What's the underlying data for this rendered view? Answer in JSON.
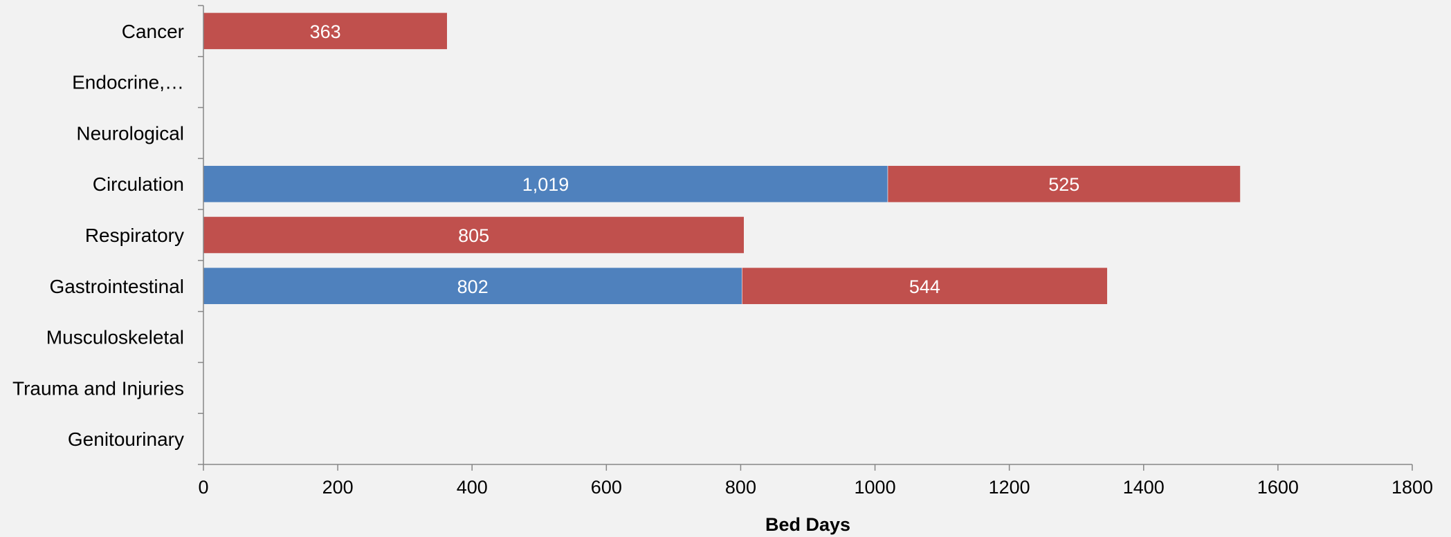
{
  "chart_data": {
    "type": "bar",
    "orientation": "horizontal",
    "stacked": true,
    "title": "",
    "xlabel": "Bed Days",
    "ylabel": "",
    "xlim": [
      0,
      1800
    ],
    "xticks": [
      0,
      200,
      400,
      600,
      800,
      1000,
      1200,
      1400,
      1600,
      1800
    ],
    "grid": false,
    "legend": "none",
    "categories": [
      "Cancer",
      "Endocrine,…",
      "Neurological",
      "Circulation",
      "Respiratory",
      "Gastrointestinal",
      "Musculoskeletal",
      "Trauma and Injuries",
      "Genitourinary"
    ],
    "series": [
      {
        "color": "#4f81bd",
        "values": [
          0,
          0,
          0,
          1019,
          0,
          802,
          0,
          0,
          0
        ],
        "labels": [
          "",
          "",
          "",
          "1,019",
          "",
          "802",
          "",
          "",
          ""
        ]
      },
      {
        "color": "#c0504d",
        "values": [
          363,
          0,
          0,
          525,
          805,
          544,
          0,
          0,
          0
        ],
        "labels": [
          "363",
          "",
          "",
          "525",
          "805",
          "544",
          "",
          "",
          ""
        ]
      }
    ]
  }
}
